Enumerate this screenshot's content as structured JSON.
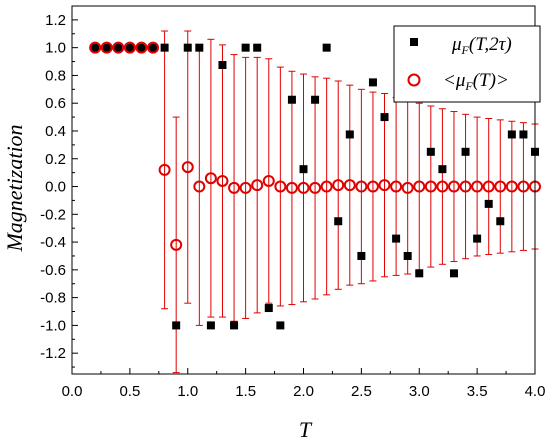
{
  "chart_data": {
    "type": "scatter",
    "xlabel": "T",
    "ylabel": "Magnetization",
    "xlim": [
      0.0,
      4.0
    ],
    "ylim": [
      -1.35,
      1.3
    ],
    "xticks": [
      "0.0",
      "0.5",
      "1.0",
      "1.5",
      "2.0",
      "2.5",
      "3.0",
      "3.5",
      "4.0"
    ],
    "yticks": [
      "1.2",
      "1.0",
      "0.8",
      "0.6",
      "0.4",
      "0.2",
      "0.0",
      "-0.2",
      "-0.4",
      "-0.6",
      "-0.8",
      "-1.0",
      "-1.2"
    ],
    "legend_position": "top-right",
    "colors": {
      "series1": "#000000",
      "series2": "#e00000"
    },
    "series": [
      {
        "name_main": "μ",
        "name_sub": "F",
        "name_rest": "(T,2τ)",
        "marker": "square",
        "x": [
          0.2,
          0.3,
          0.4,
          0.5,
          0.6,
          0.7,
          0.8,
          0.9,
          1.0,
          1.1,
          1.2,
          1.3,
          1.4,
          1.5,
          1.6,
          1.7,
          1.8,
          1.9,
          2.0,
          2.1,
          2.2,
          2.3,
          2.4,
          2.5,
          2.6,
          2.7,
          2.8,
          2.9,
          3.0,
          3.1,
          3.2,
          3.3,
          3.4,
          3.5,
          3.6,
          3.7,
          3.8,
          3.9,
          4.0
        ],
        "y": [
          1.0,
          1.0,
          1.0,
          1.0,
          1.0,
          1.0,
          1.0,
          -1.0,
          1.0,
          1.0,
          -1.0,
          0.875,
          -1.0,
          1.0,
          1.0,
          -0.875,
          -1.0,
          0.625,
          0.125,
          0.625,
          1.0,
          -0.25,
          0.375,
          -0.5,
          0.75,
          0.5,
          -0.375,
          -0.5,
          -0.625,
          0.25,
          0.125,
          -0.625,
          0.25,
          -0.375,
          -0.125,
          -0.25,
          0.375,
          0.375,
          0.25
        ]
      },
      {
        "name_pre": "<",
        "name_main": "μ",
        "name_sub": "F",
        "name_rest": "(T)>",
        "marker": "open-circle",
        "x": [
          0.2,
          0.3,
          0.4,
          0.5,
          0.6,
          0.7,
          0.8,
          0.9,
          1.0,
          1.1,
          1.2,
          1.3,
          1.4,
          1.5,
          1.6,
          1.7,
          1.8,
          1.9,
          2.0,
          2.1,
          2.2,
          2.3,
          2.4,
          2.5,
          2.6,
          2.7,
          2.8,
          2.9,
          3.0,
          3.1,
          3.2,
          3.3,
          3.4,
          3.5,
          3.6,
          3.7,
          3.8,
          3.9,
          4.0
        ],
        "y": [
          1.0,
          1.0,
          1.0,
          1.0,
          1.0,
          1.0,
          0.12,
          -0.42,
          0.14,
          0.0,
          0.06,
          0.04,
          -0.01,
          -0.01,
          0.01,
          0.04,
          0.0,
          -0.01,
          -0.01,
          -0.01,
          0.0,
          0.01,
          0.01,
          0.0,
          0.0,
          0.01,
          0.0,
          -0.01,
          0.0,
          0.0,
          0.0,
          0.0,
          0.0,
          0.0,
          0.0,
          0.0,
          0.0,
          0.0,
          0.0
        ],
        "err": [
          0.0,
          0.0,
          0.0,
          0.0,
          0.0,
          0.0,
          1.0,
          0.92,
          0.98,
          1.0,
          1.0,
          0.98,
          0.96,
          0.94,
          0.92,
          0.88,
          0.86,
          0.84,
          0.82,
          0.8,
          0.78,
          0.75,
          0.72,
          0.7,
          0.68,
          0.66,
          0.64,
          0.62,
          0.6,
          0.58,
          0.56,
          0.54,
          0.52,
          0.5,
          0.49,
          0.48,
          0.47,
          0.46,
          0.45
        ]
      }
    ]
  }
}
